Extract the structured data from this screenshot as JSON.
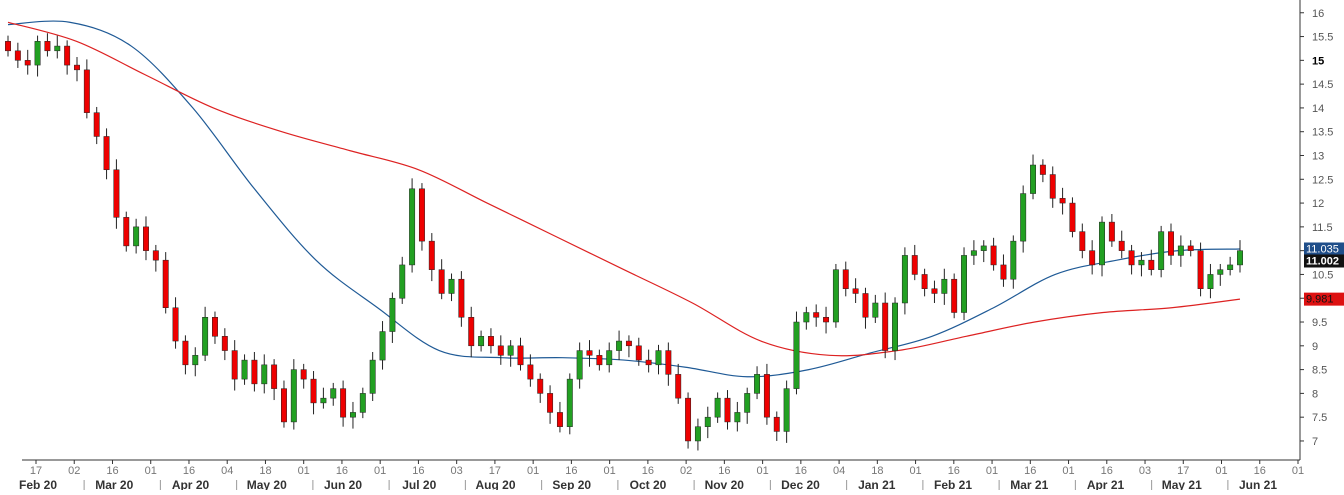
{
  "chart_data": {
    "type": "candlestick",
    "title": "",
    "xlabel": "",
    "ylabel": "",
    "ylim": [
      6.6,
      16.1
    ],
    "grid": false,
    "y_ticks": [
      7,
      7.5,
      8,
      8.5,
      9,
      9.5,
      10,
      10.5,
      11,
      11.5,
      12,
      12.5,
      13,
      13.5,
      14,
      14.5,
      15,
      15.5,
      16
    ],
    "y_tick_labels": [
      "7",
      "7.5",
      "8",
      "8.5",
      "9",
      "9.5",
      "10",
      "10.5",
      "11",
      "11.5",
      "12",
      "12.5",
      "13",
      "13.5",
      "14",
      "14.5",
      "15",
      "15.5",
      "16"
    ],
    "highlighted_y_tick": "15",
    "x_month_labels": [
      "Feb 20",
      "Mar 20",
      "Apr 20",
      "May 20",
      "Jun 20",
      "Jul 20",
      "Aug 20",
      "Sep 20",
      "Oct 20",
      "Nov 20",
      "Dec 20",
      "Jan 21",
      "Feb 21",
      "Mar 21",
      "Apr 21",
      "May 21",
      "Jun 21"
    ],
    "x_day_labels": [
      "17",
      "02",
      "16",
      "01",
      "16",
      "04",
      "18",
      "01",
      "16",
      "01",
      "16",
      "03",
      "17",
      "01",
      "16",
      "01",
      "16",
      "02",
      "16",
      "01",
      "16",
      "04",
      "18",
      "01",
      "16",
      "01",
      "16",
      "01",
      "16",
      "03",
      "17",
      "01",
      "16",
      "01"
    ],
    "up_color": "#22a022",
    "down_color": "#ee0000",
    "series": [
      {
        "name": "",
        "kind": "price_close_approx",
        "values": [
          15.2,
          15.0,
          14.9,
          15.4,
          15.2,
          15.3,
          14.9,
          14.8,
          13.9,
          13.4,
          12.7,
          11.7,
          11.1,
          11.5,
          11.0,
          10.8,
          9.8,
          9.1,
          8.6,
          8.8,
          9.6,
          9.2,
          8.9,
          8.3,
          8.7,
          8.2,
          8.6,
          8.1,
          7.4,
          8.5,
          8.3,
          7.8,
          7.9,
          8.1,
          7.5,
          7.6,
          8.0,
          8.7,
          9.3,
          10.0,
          10.7,
          12.3,
          11.2,
          10.6,
          10.1,
          10.4,
          9.6,
          9.0,
          9.2,
          9.0,
          8.8,
          9.0,
          8.6,
          8.3,
          8.0,
          7.6,
          7.3,
          8.3,
          8.9,
          8.8,
          8.6,
          8.9,
          9.1,
          9.0,
          8.7,
          8.6,
          8.9,
          8.4,
          7.9,
          7.0,
          7.3,
          7.5,
          7.9,
          7.4,
          7.6,
          8.0,
          8.4,
          7.5,
          7.2,
          8.1,
          9.5,
          9.7,
          9.6,
          9.5,
          10.6,
          10.2,
          10.1,
          9.6,
          9.9,
          8.9,
          9.9,
          10.9,
          10.5,
          10.2,
          10.1,
          10.4,
          9.7,
          10.9,
          11.0,
          11.1,
          10.7,
          10.4,
          11.2,
          12.2,
          12.8,
          12.6,
          12.1,
          12.0,
          11.4,
          11.0,
          10.7,
          11.6,
          11.2,
          11.0,
          10.7,
          10.8,
          10.6,
          11.4,
          10.9,
          11.1,
          11.0,
          10.2,
          10.5,
          10.6,
          10.7,
          11.0
        ],
        "note": ""
      },
      {
        "name": "",
        "kind": "moving_average",
        "color": "#1f5a96",
        "values": [
          15.75,
          15.8,
          15.3,
          14.0,
          12.3,
          10.8,
          9.8,
          8.9,
          8.75,
          8.75,
          8.7,
          8.55,
          8.35,
          8.5,
          8.85,
          9.2,
          9.8,
          10.5,
          10.8,
          11.0,
          11.035
        ]
      },
      {
        "name": "",
        "kind": "moving_average",
        "color": "#dd2222",
        "values": [
          15.8,
          15.4,
          14.7,
          14.0,
          13.5,
          13.1,
          12.7,
          12.0,
          11.3,
          10.6,
          9.9,
          9.1,
          8.8,
          8.9,
          9.2,
          9.5,
          9.7,
          9.8,
          9.981
        ]
      }
    ],
    "badges": [
      {
        "label": "11.035",
        "color": "#1f4e8a",
        "text_color": "#ffffff",
        "value": 11.035
      },
      {
        "label": "11.002",
        "color": "#111111",
        "text_color": "#ffffff",
        "value": 11.002
      },
      {
        "label": "9.981",
        "color": "#dd1111",
        "text_color": "#111111",
        "value": 9.981
      }
    ]
  }
}
